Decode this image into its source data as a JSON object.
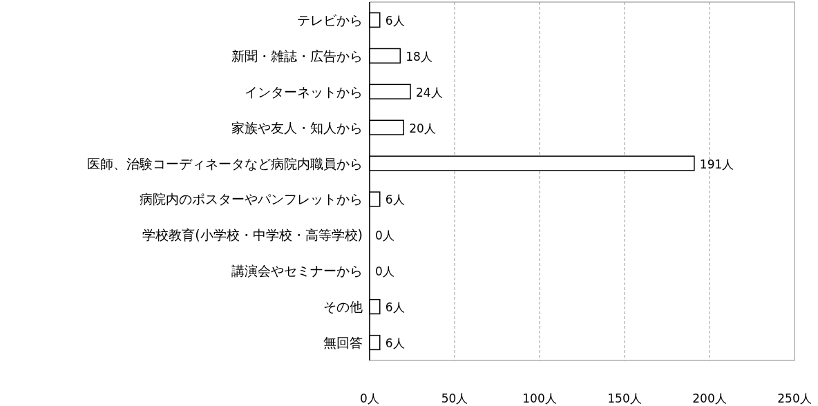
{
  "chart_data": {
    "type": "bar",
    "orientation": "horizontal",
    "categories": [
      "テレビから",
      "新聞・雑誌・広告から",
      "インターネットから",
      "家族や友人・知人から",
      "医師、治験コーディネータなど病院内職員から",
      "病院内のポスターやパンフレットから",
      "学校教育(小学校・中学校・高等学校)",
      "講演会やセミナーから",
      "その他",
      "無回答"
    ],
    "values": [
      6,
      18,
      24,
      20,
      191,
      6,
      0,
      0,
      6,
      6
    ],
    "value_labels": [
      "6人",
      "18人",
      "24人",
      "20人",
      "191人",
      "6人",
      "0人",
      "0人",
      "6人",
      "6人"
    ],
    "color": "#ffffff",
    "xlim": [
      0,
      250
    ],
    "xticks": [
      {
        "value": 0,
        "label": "0人"
      },
      {
        "value": 50,
        "label": "50人"
      },
      {
        "value": 100,
        "label": "100人"
      },
      {
        "value": 150,
        "label": "150人"
      },
      {
        "value": 200,
        "label": "200人"
      },
      {
        "value": 250,
        "label": "250人"
      }
    ],
    "grid": "x"
  }
}
